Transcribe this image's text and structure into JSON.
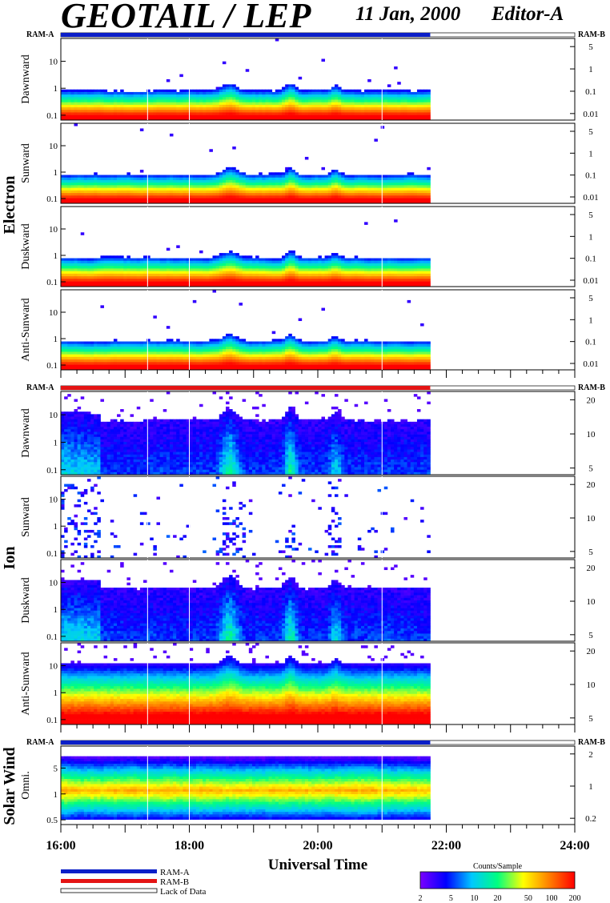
{
  "header": {
    "title": "GEOTAIL / LEP",
    "date": "11 Jan, 2000",
    "editor": "Editor-A"
  },
  "chart_data": {
    "type": "heatmap",
    "xlabel": "Universal Time",
    "x_ticks": [
      "16:00",
      "18:00",
      "20:00",
      "22:00",
      "24:00"
    ],
    "x_range_hours": [
      16,
      24
    ],
    "data_end_hour": 21.75,
    "groups": [
      {
        "name": "Electron",
        "ram_left": "RAM-A",
        "ram_right": "RAM-B",
        "ram_bar": "RAM-A",
        "left_ticks": [
          "10",
          "1",
          "0.1"
        ],
        "right_ticks": [
          "5",
          "1",
          "0.1",
          "0.01"
        ],
        "panels": [
          {
            "name": "Dawnward"
          },
          {
            "name": "Sunward"
          },
          {
            "name": "Duskward"
          },
          {
            "name": "Anti-Sunward"
          }
        ]
      },
      {
        "name": "Ion",
        "ram_left": "RAM-A",
        "ram_right": "RAM-B",
        "ram_bar": "RAM-B",
        "left_ticks": [
          "10",
          "1",
          "0.1"
        ],
        "right_ticks": [
          "20",
          "10",
          "5"
        ],
        "panels": [
          {
            "name": "Dawnward"
          },
          {
            "name": "Sunward"
          },
          {
            "name": "Duskward"
          },
          {
            "name": "Anti-Sunward"
          }
        ]
      },
      {
        "name": "Solar Wind",
        "ram_left": "RAM-A",
        "ram_right": "RAM-B",
        "ram_bar": "RAM-A",
        "left_ticks": [
          "5",
          "1",
          "0.5"
        ],
        "right_ticks": [
          "2",
          "1",
          "0.2"
        ],
        "panels": [
          {
            "name": "Omni."
          }
        ]
      }
    ],
    "legend": [
      {
        "label": "RAM-A",
        "color": "#0b1fc8"
      },
      {
        "label": "RAM-B",
        "color": "#e41414"
      },
      {
        "label": "Lack of Data",
        "color": "#ffffff"
      }
    ],
    "colorbar": {
      "title": "Counts/Sample",
      "ticks": [
        "2",
        "5",
        "10",
        "20",
        "50",
        "100",
        "200"
      ],
      "scale": "log",
      "range": [
        2,
        200
      ],
      "colors": [
        "#7a00ff",
        "#0000ff",
        "#00c8ff",
        "#00ff80",
        "#ffff00",
        "#ff8000",
        "#ff0000"
      ]
    }
  }
}
